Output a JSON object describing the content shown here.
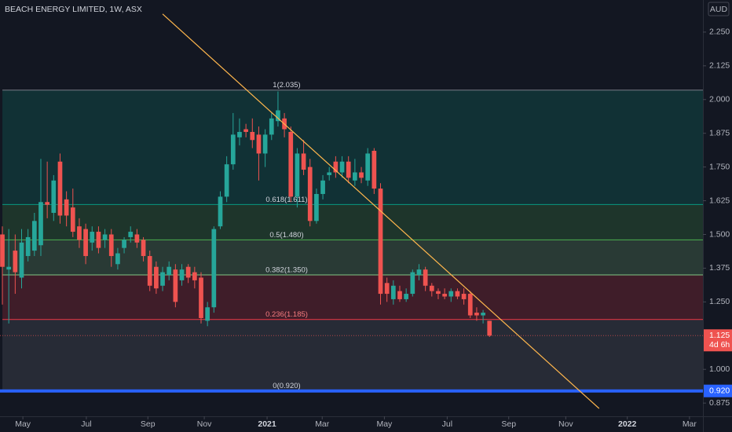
{
  "chart_data": {
    "type": "candlestick",
    "title": "BEACH ENERGY LIMITED, 1W, ASX",
    "currency": "AUD",
    "up_color": "#26a69a",
    "down_color": "#ef5350",
    "open": [
      1.5,
      1.37,
      1.44,
      1.34,
      1.42,
      1.44,
      1.46,
      1.62,
      1.58,
      1.77,
      1.63,
      1.6,
      1.53,
      1.52,
      1.47,
      1.51,
      1.48,
      1.5,
      1.39,
      1.45,
      1.49,
      1.5,
      1.48,
      1.42,
      1.38,
      1.31,
      1.35,
      1.37,
      1.33,
      1.38,
      1.36,
      1.34,
      1.18,
      1.23,
      1.53,
      1.64,
      1.76,
      1.86,
      1.89,
      1.88,
      1.87,
      1.8,
      1.87,
      1.92,
      1.93,
      1.88,
      1.64,
      1.8,
      1.75,
      1.55,
      1.65,
      1.72,
      1.77,
      1.73,
      1.77,
      1.7,
      1.73,
      1.7,
      1.81,
      1.67,
      1.32,
      1.26,
      1.29,
      1.26,
      1.28,
      1.35,
      1.37,
      1.31,
      1.29,
      1.28,
      1.27,
      1.29,
      1.28,
      1.28,
      1.21,
      1.2,
      1.18
    ],
    "high": [
      1.53,
      1.52,
      1.5,
      1.52,
      1.52,
      1.58,
      1.78,
      1.77,
      1.72,
      1.8,
      1.66,
      1.67,
      1.56,
      1.54,
      1.53,
      1.53,
      1.52,
      1.52,
      1.45,
      1.49,
      1.53,
      1.52,
      1.49,
      1.44,
      1.4,
      1.38,
      1.4,
      1.39,
      1.39,
      1.39,
      1.38,
      1.36,
      1.25,
      1.53,
      1.66,
      1.79,
      1.95,
      1.93,
      1.91,
      1.93,
      1.9,
      1.89,
      1.95,
      2.03,
      1.95,
      1.9,
      1.82,
      1.85,
      1.78,
      1.67,
      1.72,
      1.75,
      1.79,
      1.79,
      1.79,
      1.78,
      1.75,
      1.82,
      1.82,
      1.69,
      1.34,
      1.33,
      1.31,
      1.3,
      1.37,
      1.39,
      1.38,
      1.32,
      1.3,
      1.3,
      1.3,
      1.3,
      1.3,
      1.29,
      1.23,
      1.22,
      1.18
    ],
    "low": [
      1.24,
      1.17,
      1.28,
      1.3,
      1.4,
      1.42,
      1.42,
      1.56,
      1.55,
      1.54,
      1.53,
      1.49,
      1.45,
      1.39,
      1.44,
      1.43,
      1.45,
      1.38,
      1.37,
      1.43,
      1.47,
      1.45,
      1.4,
      1.29,
      1.28,
      1.29,
      1.33,
      1.23,
      1.31,
      1.32,
      1.3,
      1.17,
      1.16,
      1.21,
      1.52,
      1.62,
      1.74,
      1.83,
      1.86,
      1.82,
      1.7,
      1.75,
      1.85,
      1.9,
      1.86,
      1.62,
      1.6,
      1.72,
      1.53,
      1.54,
      1.63,
      1.7,
      1.71,
      1.71,
      1.69,
      1.68,
      1.69,
      1.68,
      1.65,
      1.24,
      1.25,
      1.24,
      1.25,
      1.25,
      1.27,
      1.33,
      1.29,
      1.27,
      1.26,
      1.26,
      1.25,
      1.26,
      1.24,
      1.19,
      1.18,
      1.17,
      1.12
    ],
    "close": [
      1.38,
      1.38,
      1.36,
      1.47,
      1.49,
      1.55,
      1.62,
      1.61,
      1.7,
      1.57,
      1.57,
      1.51,
      1.48,
      1.42,
      1.51,
      1.45,
      1.5,
      1.42,
      1.43,
      1.48,
      1.51,
      1.47,
      1.42,
      1.31,
      1.3,
      1.36,
      1.38,
      1.25,
      1.37,
      1.34,
      1.33,
      1.19,
      1.23,
      1.52,
      1.64,
      1.76,
      1.87,
      1.88,
      1.88,
      1.85,
      1.8,
      1.87,
      1.93,
      1.96,
      1.89,
      1.64,
      1.8,
      1.74,
      1.55,
      1.65,
      1.7,
      1.73,
      1.73,
      1.77,
      1.71,
      1.73,
      1.71,
      1.8,
      1.67,
      1.28,
      1.28,
      1.31,
      1.26,
      1.28,
      1.36,
      1.37,
      1.31,
      1.29,
      1.28,
      1.27,
      1.29,
      1.27,
      1.26,
      1.2,
      1.2,
      1.21,
      1.125
    ],
    "xlim": [
      -0.37,
      109.3
    ],
    "xticks": [
      {
        "value": 3.2,
        "label": "May"
      },
      {
        "value": 13.1,
        "label": "Jul"
      },
      {
        "value": 22.7,
        "label": "Sep"
      },
      {
        "value": 31.5,
        "label": "Nov"
      },
      {
        "value": 41.3,
        "label": "2021"
      },
      {
        "value": 49.9,
        "label": "Mar"
      },
      {
        "value": 59.6,
        "label": "May"
      },
      {
        "value": 69.4,
        "label": "Jul"
      },
      {
        "value": 79.0,
        "label": "Sep"
      },
      {
        "value": 87.9,
        "label": "Nov"
      },
      {
        "value": 97.5,
        "label": "2022"
      },
      {
        "value": 107.2,
        "label": "Mar"
      }
    ],
    "ylim": [
      0.826,
      2.369
    ],
    "yticks": [
      {
        "value": 2.25,
        "label": "2.250"
      },
      {
        "value": 2.125,
        "label": "2.125"
      },
      {
        "value": 2.0,
        "label": "2.000"
      },
      {
        "value": 1.875,
        "label": "1.875"
      },
      {
        "value": 1.75,
        "label": "1.750"
      },
      {
        "value": 1.625,
        "label": "1.625"
      },
      {
        "value": 1.5,
        "label": "1.500"
      },
      {
        "value": 1.375,
        "label": "1.375"
      },
      {
        "value": 1.25,
        "label": "1.250"
      },
      {
        "value": 1.0,
        "label": "1.000"
      },
      {
        "value": 0.875,
        "label": "0.875"
      }
    ],
    "fib_levels": [
      {
        "label": "1(2.035)",
        "value": 2.035,
        "color": "#787b86"
      },
      {
        "label": "0.618(1.611)",
        "value": 1.611,
        "color": "#089981"
      },
      {
        "label": "0.5(1.480)",
        "value": 1.48,
        "color": "#4caf50"
      },
      {
        "label": "0.382(1.350)",
        "value": 1.35,
        "color": "#81c784"
      },
      {
        "label": "0.236(1.185)",
        "value": 1.185,
        "color": "#f23645"
      },
      {
        "label": "0(0.920)",
        "value": 0.92,
        "color": "#787b86"
      }
    ],
    "trendline": {
      "x": [
        25.0,
        93.1
      ],
      "y": [
        2.317,
        0.855
      ],
      "color": "#ffb74d"
    },
    "horizontal_line": {
      "value": 0.92,
      "label": "0.920",
      "color": "#2962ff"
    },
    "last_price": {
      "value": 1.125,
      "label": "1.125",
      "countdown": "4d 6h"
    }
  }
}
